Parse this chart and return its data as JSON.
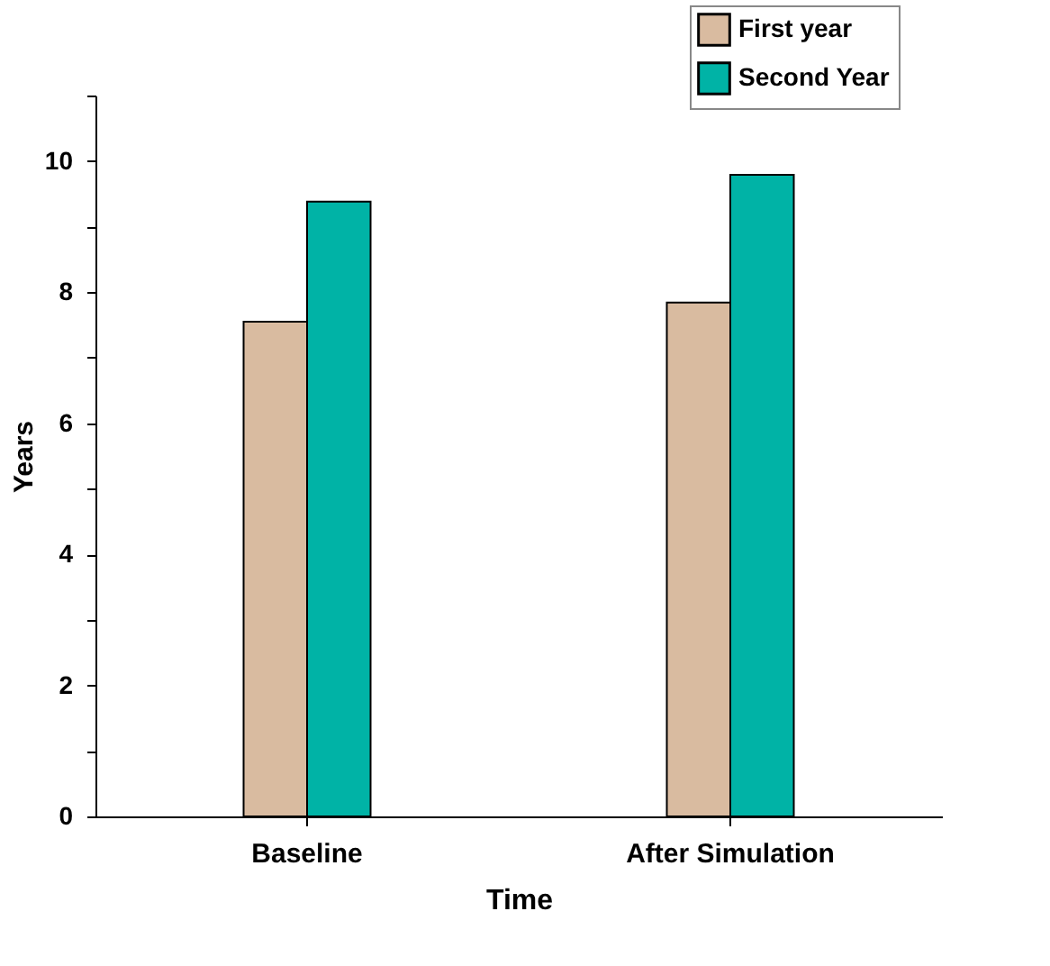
{
  "chart_data": {
    "type": "bar",
    "xlabel": "Time",
    "ylabel": "Years",
    "categories": [
      "Baseline",
      "After Simulation"
    ],
    "series": [
      {
        "name": "First year",
        "color": "#d9bba0",
        "values": [
          7.55,
          7.84
        ]
      },
      {
        "name": "Second Year",
        "color": "#00b3a6",
        "values": [
          9.38,
          9.79
        ]
      }
    ],
    "ylim": [
      0,
      11
    ],
    "yticks": [
      0,
      {
        "value": 1,
        "label": null
      },
      2,
      {
        "value": 3,
        "label": null
      },
      4,
      {
        "value": 5,
        "label": null
      },
      6,
      {
        "value": 7,
        "label": null
      },
      8,
      {
        "value": 9,
        "label": null
      },
      10,
      {
        "value": 11,
        "label": null
      }
    ],
    "grid": false,
    "legend": "top right"
  }
}
